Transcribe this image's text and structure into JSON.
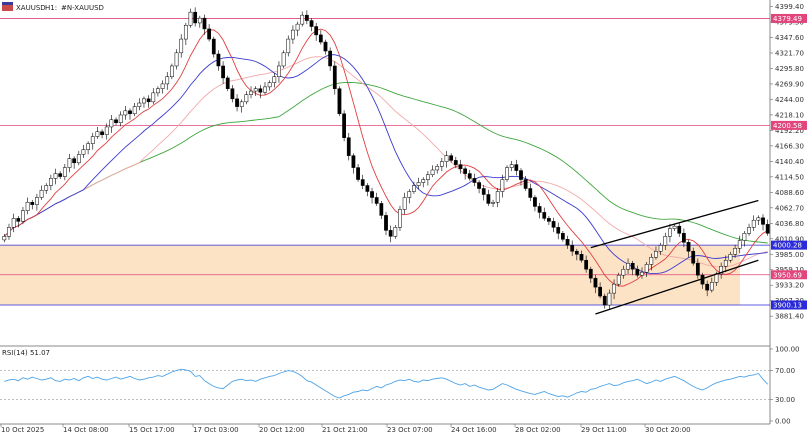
{
  "header": {
    "symbol": "XAUUSD",
    "timeframe": "H1:",
    "suffix": "#N-XAUUSD"
  },
  "chart_data": {
    "type": "candlestick",
    "title": "XAUUSD, H1: #N-XAUUSD",
    "price_axis": {
      "ticks": [
        "4399.40",
        "4373.50",
        "4347.60",
        "4321.70",
        "4295.80",
        "4269.90",
        "4244.00",
        "4218.10",
        "4192.20",
        "4166.30",
        "4140.40",
        "4114.50",
        "4088.60",
        "4062.70",
        "4036.80",
        "4010.90",
        "3985.00",
        "3959.10",
        "3933.20",
        "3907.30",
        "3881.40"
      ],
      "ylim": [
        3870,
        4402
      ]
    },
    "level_labels": [
      {
        "value": "4379.49",
        "price": 4379.49,
        "color": "#e0457b"
      },
      {
        "value": "4200.58",
        "price": 4200.58,
        "color": "#e0457b"
      },
      {
        "value": "4000.28",
        "price": 4000.28,
        "color": "#2a2ad8"
      },
      {
        "value": "3950.69",
        "price": 3950.69,
        "color": "#e0457b"
      },
      {
        "value": "3900.13",
        "price": 3900.13,
        "color": "#2a2ad8"
      }
    ],
    "demand_zone": {
      "top": 4000.28,
      "bottom": 3900.13,
      "color": "#fde3c6"
    },
    "x_labels": [
      "10 Oct 2025",
      "14 Oct 08:00",
      "15 Oct 17:00",
      "17 Oct 03:00",
      "20 Oct 12:00",
      "21 Oct 21:00",
      "23 Oct 07:00",
      "24 Oct 16:00",
      "28 Oct 02:00",
      "29 Oct 11:00",
      "30 Oct 20:00"
    ],
    "closes": [
      4015,
      4030,
      4045,
      4040,
      4058,
      4072,
      4068,
      4080,
      4092,
      4100,
      4112,
      4120,
      4115,
      4130,
      4145,
      4138,
      4152,
      4160,
      4170,
      4182,
      4190,
      4185,
      4198,
      4210,
      4205,
      4218,
      4225,
      4220,
      4232,
      4238,
      4245,
      4240,
      4255,
      4262,
      4270,
      4282,
      4300,
      4322,
      4345,
      4368,
      4390,
      4372,
      4380,
      4362,
      4345,
      4320,
      4300,
      4280,
      4262,
      4245,
      4232,
      4240,
      4252,
      4258,
      4262,
      4256,
      4265,
      4272,
      4282,
      4300,
      4322,
      4345,
      4360,
      4370,
      4385,
      4376,
      4366,
      4352,
      4340,
      4325,
      4300,
      4262,
      4220,
      4180,
      4150,
      4130,
      4110,
      4100,
      4090,
      4080,
      4070,
      4050,
      4025,
      4015,
      4030,
      4060,
      4080,
      4090,
      4100,
      4105,
      4110,
      4118,
      4126,
      4132,
      4140,
      4150,
      4142,
      4135,
      4128,
      4120,
      4112,
      4105,
      4095,
      4085,
      4070,
      4072,
      4090,
      4110,
      4130,
      4135,
      4125,
      4110,
      4095,
      4080,
      4065,
      4055,
      4045,
      4040,
      4030,
      4020,
      4010,
      4000,
      3990,
      3985,
      3975,
      3960,
      3945,
      3930,
      3915,
      3900,
      3920,
      3935,
      3950,
      3960,
      3970,
      3960,
      3950,
      3955,
      3968,
      3980,
      3990,
      4000,
      4015,
      4028,
      4032,
      4020,
      4005,
      3990,
      3970,
      3950,
      3935,
      3925,
      3938,
      3952,
      3965,
      3975,
      3985,
      3995,
      4008,
      4020,
      4030,
      4042,
      4046,
      4035,
      4020
    ],
    "indicators": {
      "ma_series": [
        "fast MA (red)",
        "MA (blue)",
        "slow MA (pink)",
        "long MA (green)"
      ]
    },
    "channel": {
      "upper": [
        {
          "x_index": 126,
          "price": 3996
        },
        {
          "x_index": 162,
          "price": 4075
        }
      ],
      "lower": [
        {
          "x_index": 127,
          "price": 3885
        },
        {
          "x_index": 162,
          "price": 3975
        }
      ]
    },
    "rsi": {
      "label": "RSI(14) 51.07",
      "ticks": [
        "100.00",
        "70.00",
        "30.00",
        "0.00"
      ],
      "levels": [
        70,
        30
      ],
      "ylim": [
        0,
        100
      ],
      "values": [
        55,
        57,
        58,
        56,
        60,
        58,
        61,
        59,
        57,
        58,
        60,
        56,
        55,
        58,
        57,
        59,
        56,
        60,
        62,
        59,
        61,
        58,
        57,
        59,
        61,
        58,
        60,
        62,
        59,
        57,
        58,
        60,
        61,
        63,
        62,
        65,
        68,
        70,
        72,
        71,
        69,
        62,
        63,
        56,
        52,
        48,
        46,
        45,
        50,
        55,
        57,
        58,
        56,
        57,
        55,
        58,
        60,
        62,
        63,
        66,
        68,
        70,
        69,
        66,
        62,
        56,
        54,
        50,
        46,
        42,
        38,
        34,
        32,
        35,
        37,
        40,
        41,
        43,
        42,
        45,
        48,
        46,
        50,
        52,
        55,
        57,
        56,
        58,
        55,
        54,
        57,
        56,
        58,
        59,
        60,
        58,
        55,
        52,
        50,
        52,
        48,
        50,
        47,
        45,
        43,
        44,
        48,
        52,
        50,
        47,
        44,
        42,
        40,
        38,
        37,
        39,
        41,
        38,
        36,
        34,
        35,
        33,
        36,
        39,
        41,
        40,
        44,
        45,
        48,
        50,
        52,
        49,
        50,
        53,
        55,
        56,
        58,
        55,
        52,
        54,
        57,
        55,
        58,
        60,
        62,
        59,
        56,
        52,
        48,
        45,
        43,
        46,
        50,
        53,
        55,
        57,
        58,
        60,
        62,
        61,
        63,
        64,
        66,
        58,
        51
      ]
    }
  }
}
